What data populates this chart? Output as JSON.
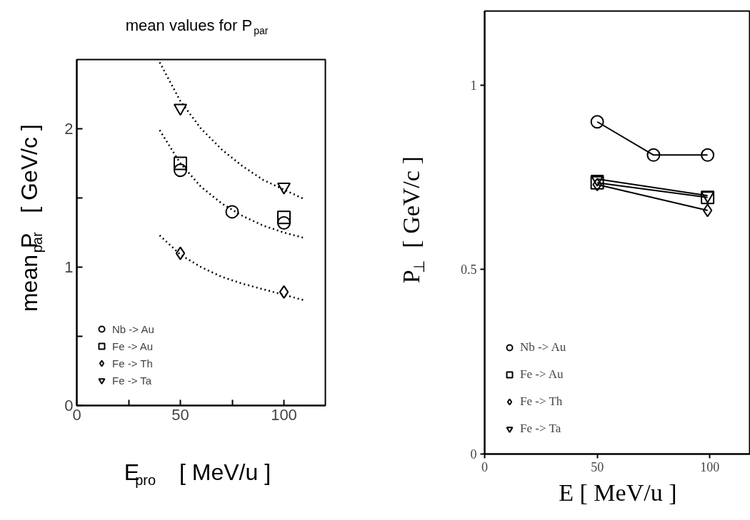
{
  "chart_data": [
    {
      "type": "scatter",
      "title": "mean values for P$_{par}$",
      "xlabel": "E$_{pro}$ [ MeV/u ]",
      "ylabel": "mean P$_{par}$ [ GeV/c ]",
      "xlim": [
        0,
        120
      ],
      "ylim": [
        0,
        2.5
      ],
      "xticks": [
        0,
        {
          "value": 25,
          "label": null
        },
        50,
        {
          "value": 75,
          "label": null
        },
        100
      ],
      "yticks": [
        0,
        {
          "value": 0.5,
          "label": null
        },
        1,
        {
          "value": 1.5,
          "label": null
        },
        2
      ],
      "legend": "bottom left",
      "grid": false,
      "series": [
        {
          "name": "Nb -> Au",
          "color": "#000000",
          "marker": "circle",
          "x": [
            50,
            75,
            100
          ],
          "values": [
            1.7,
            1.4,
            1.32
          ]
        },
        {
          "name": "Fe -> Au",
          "color": "#000000",
          "marker": "square",
          "x": [
            50,
            100
          ],
          "values": [
            1.75,
            1.36
          ]
        },
        {
          "name": "Fe -> Th",
          "color": "#000000",
          "marker": "diamond",
          "x": [
            50,
            100
          ],
          "values": [
            1.1,
            0.82
          ]
        },
        {
          "name": "Fe -> Ta",
          "color": "#000000",
          "marker": "triangle",
          "x": [
            50,
            100
          ],
          "values": [
            2.15,
            1.58
          ]
        },
        {
          "type": "line",
          "color": "#000000",
          "marker": "none",
          "line_style": "dotted",
          "x": [
            40,
            50,
            60,
            70,
            80,
            90,
            100,
            110
          ],
          "values": [
            2.48,
            2.2,
            2.0,
            1.85,
            1.73,
            1.63,
            1.56,
            1.49
          ]
        },
        {
          "type": "line",
          "color": "#000000",
          "marker": "none",
          "line_style": "dotted",
          "x": [
            40,
            50,
            60,
            70,
            80,
            90,
            100,
            110
          ],
          "values": [
            1.99,
            1.75,
            1.58,
            1.46,
            1.37,
            1.3,
            1.25,
            1.21
          ]
        },
        {
          "type": "line",
          "color": "#000000",
          "marker": "none",
          "line_style": "dotted",
          "x": [
            40,
            50,
            60,
            70,
            80,
            90,
            100,
            110
          ],
          "values": [
            1.23,
            1.09,
            1.0,
            0.93,
            0.88,
            0.84,
            0.8,
            0.76
          ]
        }
      ]
    },
    {
      "type": "line",
      "xlabel": "E [ MeV/u ]",
      "ylabel": "P$_{⊥}$ [ GeV/c ]",
      "xlim": [
        0,
        118
      ],
      "ylim": [
        0,
        1.2
      ],
      "xticks": [
        0,
        50,
        100
      ],
      "yticks": [
        0,
        0.5,
        1
      ],
      "legend": "bottom left",
      "grid": false,
      "line_style": "solid",
      "series": [
        {
          "name": "Nb -> Au",
          "color": "#000000",
          "marker": "circle",
          "x": [
            50,
            75,
            99
          ],
          "values": [
            0.9,
            0.81,
            0.81
          ]
        },
        {
          "name": "Fe -> Au",
          "color": "#000000",
          "marker": "square",
          "x": [
            50,
            99
          ],
          "values": [
            0.735,
            0.695
          ]
        },
        {
          "name": "Fe -> Th",
          "color": "#000000",
          "marker": "diamond",
          "x": [
            50,
            99
          ],
          "values": [
            0.73,
            0.66
          ]
        },
        {
          "name": "Fe -> Ta",
          "color": "#000000",
          "marker": "triangle",
          "x": [
            50,
            99
          ],
          "values": [
            0.745,
            0.7
          ]
        }
      ]
    }
  ]
}
